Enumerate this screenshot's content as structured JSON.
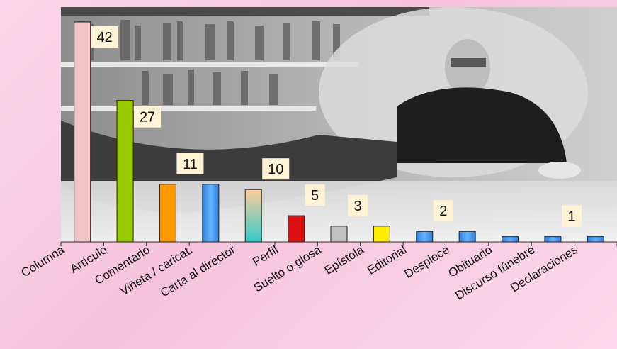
{
  "chart_data": {
    "type": "bar",
    "title": "",
    "xlabel": "",
    "ylabel": "",
    "ylim": [
      0,
      42
    ],
    "grid": false,
    "legend": "none",
    "categories": [
      "Columna",
      "Artículo",
      "Comentario",
      "Viñeta / caricat.",
      "Carta al director",
      "Perfil",
      "Suelto o glosa",
      "Epístola",
      "Editorial",
      "Despiece",
      "Obituario",
      "Discurso fúnebre",
      "Declaraciones"
    ],
    "values": [
      42,
      27,
      11,
      11,
      10,
      5,
      3,
      3,
      2,
      2,
      1,
      1,
      1
    ],
    "data_labels": [
      {
        "index": 0,
        "text": "42"
      },
      {
        "index": 1,
        "text": "27"
      },
      {
        "index": 2,
        "text": "11"
      },
      {
        "index": 4,
        "text": "10"
      },
      {
        "index": 5,
        "text": "5"
      },
      {
        "index": 6,
        "text": "3"
      },
      {
        "index": 8,
        "text": "2"
      },
      {
        "index": 11,
        "text": "1"
      }
    ],
    "bar_colors": [
      "#f2c6c6",
      "#99cc00",
      "#ff9900",
      "#3399ff",
      "gradient-peach-teal",
      "#dd1111",
      "#c0c0c0",
      "#ffee00",
      "#3399ff",
      "#3399ff",
      "#3399ff",
      "#3399ff",
      "#3399ff"
    ],
    "background_image": "photo of an elderly man in glasses seated in a wicker chair in front of bookshelves"
  }
}
